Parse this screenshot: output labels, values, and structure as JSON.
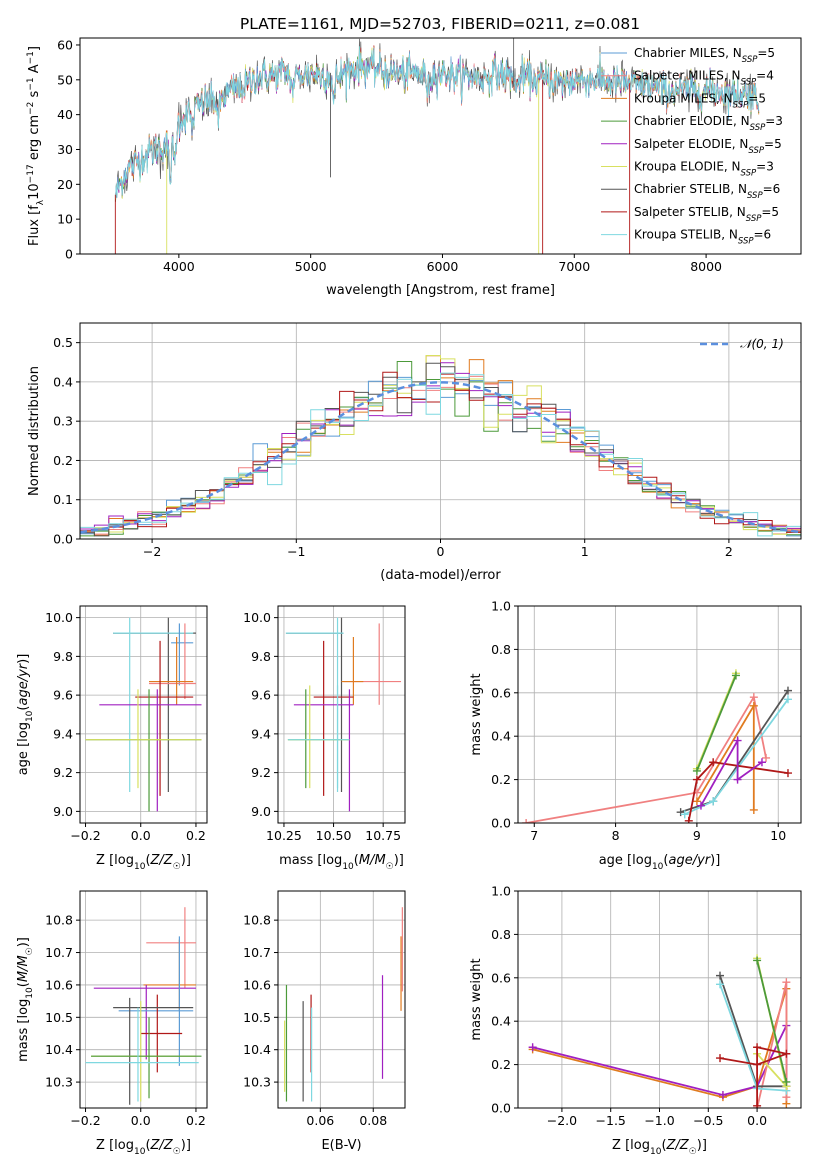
{
  "title": "PLATE=1161, MJD=52703, FIBERID=0211, z=0.081",
  "colors": {
    "chabrier_miles": "#5b9bd5",
    "salpeter_miles": "#f08080",
    "kroupa_miles": "#e07b20",
    "chabrier_elodie": "#4c9a3a",
    "salpeter_elodie": "#a020c0",
    "kroupa_elodie": "#d8e060",
    "chabrier_stelib": "#555555",
    "salpeter_stelib": "#b01818",
    "kroupa_stelib": "#7fd8e0",
    "normal": "#5b8fde",
    "pink": "#e58ac0"
  },
  "chart_data": [
    {
      "panel": "spectrum",
      "type": "line",
      "xlabel": "wavelength [Angstrom, rest frame]",
      "ylabel": "Flux [f_λ 10^-17 erg cm^-2 s^-1 A^-1]",
      "xlim": [
        3250,
        8720
      ],
      "ylim": [
        0,
        62
      ],
      "xticks": [
        "4000",
        "5000",
        "6000",
        "7000",
        "8000"
      ],
      "yticks": [
        "0",
        "10",
        "20",
        "30",
        "40",
        "50",
        "60"
      ],
      "legend": [
        {
          "label": "Chabrier MILES, N",
          "sub": "SSP",
          "value": "=5",
          "color_key": "chabrier_miles"
        },
        {
          "label": "Salpeter MILES, N",
          "sub": "SSP",
          "value": "=4",
          "color_key": "salpeter_miles"
        },
        {
          "label": "Kroupa MILES, N",
          "sub": "SSP",
          "value": "=5",
          "color_key": "kroupa_miles"
        },
        {
          "label": "Chabrier ELODIE, N",
          "sub": "SSP",
          "value": "=3",
          "color_key": "chabrier_elodie"
        },
        {
          "label": "Salpeter ELODIE, N",
          "sub": "SSP",
          "value": "=5",
          "color_key": "salpeter_elodie"
        },
        {
          "label": "Kroupa ELODIE, N",
          "sub": "SSP",
          "value": "=3",
          "color_key": "kroupa_elodie"
        },
        {
          "label": "Chabrier STELIB, N",
          "sub": "SSP",
          "value": "=6",
          "color_key": "chabrier_stelib"
        },
        {
          "label": "Salpeter STELIB, N",
          "sub": "SSP",
          "value": "=5",
          "color_key": "salpeter_stelib"
        },
        {
          "label": "Kroupa STELIB, N",
          "sub": "SSP",
          "value": "=6",
          "color_key": "kroupa_stelib"
        }
      ],
      "continuum": [
        [
          3520,
          17
        ],
        [
          3600,
          24
        ],
        [
          3700,
          27
        ],
        [
          3800,
          30
        ],
        [
          3900,
          31
        ],
        [
          3950,
          32
        ],
        [
          4000,
          38
        ],
        [
          4100,
          41
        ],
        [
          4200,
          44
        ],
        [
          4300,
          44
        ],
        [
          4400,
          47
        ],
        [
          4500,
          48
        ],
        [
          4600,
          51
        ],
        [
          4700,
          51
        ],
        [
          4800,
          52
        ],
        [
          4900,
          51
        ],
        [
          5000,
          52
        ],
        [
          5100,
          51
        ],
        [
          5200,
          51
        ],
        [
          5300,
          53
        ],
        [
          5400,
          54
        ],
        [
          5500,
          53
        ],
        [
          5600,
          52
        ],
        [
          5700,
          52
        ],
        [
          5800,
          52
        ],
        [
          5900,
          51
        ],
        [
          6000,
          52
        ],
        [
          6100,
          51
        ],
        [
          6200,
          51
        ],
        [
          6300,
          50
        ],
        [
          6400,
          52
        ],
        [
          6500,
          51
        ],
        [
          6600,
          51
        ],
        [
          6700,
          50
        ],
        [
          6800,
          50
        ],
        [
          6900,
          49
        ],
        [
          7000,
          50
        ],
        [
          7100,
          50
        ],
        [
          7200,
          50
        ],
        [
          7300,
          49
        ],
        [
          7400,
          49
        ],
        [
          7500,
          48
        ],
        [
          7600,
          48
        ],
        [
          7700,
          47
        ],
        [
          7800,
          47
        ],
        [
          7900,
          47
        ],
        [
          8000,
          47
        ],
        [
          8100,
          47
        ],
        [
          8200,
          46
        ],
        [
          8300,
          46
        ],
        [
          8400,
          45
        ]
      ],
      "features": [
        {
          "wl": 3933,
          "depth": 10
        },
        {
          "wl": 3968,
          "depth": 8
        },
        {
          "wl": 4102,
          "depth": 5
        },
        {
          "wl": 4300,
          "depth": 6
        },
        {
          "wl": 4861,
          "depth": 5
        },
        {
          "wl": 5175,
          "depth": 7
        },
        {
          "wl": 5890,
          "depth": 5
        },
        {
          "wl": 6563,
          "depth": 5
        },
        {
          "wl": 8500,
          "depth": 4
        }
      ]
    },
    {
      "panel": "residual_histogram",
      "type": "line",
      "xlabel": "(data-model)/error",
      "ylabel": "Normed distribution",
      "xlim": [
        -2.5,
        2.5
      ],
      "ylim": [
        0,
        0.55
      ],
      "xticks": [
        "-2",
        "-1",
        "0",
        "1",
        "2"
      ],
      "yticks": [
        "0.0",
        "0.1",
        "0.2",
        "0.3",
        "0.4",
        "0.5"
      ],
      "series_name": "𝒩(0, 1)",
      "bin_width": 0.1,
      "bin_start": -2.5
    },
    {
      "panel": "age_vs_Z",
      "type": "scatter",
      "xlabel": "Z [log10(Z/Z☉)]",
      "ylabel": "age [log10(age/yr)]",
      "xlim": [
        -0.22,
        0.24
      ],
      "ylim": [
        8.94,
        10.06
      ],
      "xticks": [
        "-0.2",
        "0.0",
        "0.2"
      ],
      "yticks": [
        "9.0",
        "9.2",
        "9.4",
        "9.6",
        "9.8",
        "10.0"
      ],
      "points": [
        {
          "x": 0.1,
          "y": 9.92,
          "xl": -0.1,
          "xh": 0.2,
          "yl": 9.1,
          "yh": 10.0,
          "c": "chabrier_stelib"
        },
        {
          "x": -0.04,
          "y": 9.92,
          "xl": -0.1,
          "xh": 0.19,
          "yl": 9.1,
          "yh": 10.0,
          "c": "kroupa_stelib"
        },
        {
          "x": 0.14,
          "y": 9.87,
          "xl": 0.11,
          "xh": 0.19,
          "yl": 9.65,
          "yh": 9.97,
          "c": "chabrier_miles"
        },
        {
          "x": 0.16,
          "y": 9.66,
          "xl": 0.03,
          "xh": 0.2,
          "yl": 9.58,
          "yh": 9.97,
          "c": "salpeter_miles"
        },
        {
          "x": 0.13,
          "y": 9.67,
          "xl": 0.03,
          "xh": 0.19,
          "yl": 9.55,
          "yh": 9.9,
          "c": "kroupa_miles"
        },
        {
          "x": 0.07,
          "y": 9.59,
          "xl": -0.02,
          "xh": 0.19,
          "yl": 9.08,
          "yh": 9.88,
          "c": "salpeter_stelib"
        },
        {
          "x": 0.06,
          "y": 9.55,
          "xl": -0.15,
          "xh": 0.22,
          "yl": 9.0,
          "yh": 9.63,
          "c": "salpeter_elodie"
        },
        {
          "x": 0.03,
          "y": 9.37,
          "xl": -0.2,
          "xh": 0.22,
          "yl": 9.0,
          "yh": 9.63,
          "c": "chabrier_elodie"
        },
        {
          "x": -0.01,
          "y": 9.37,
          "xl": -0.2,
          "xh": 0.22,
          "yl": 9.12,
          "yh": 9.63,
          "c": "kroupa_elodie"
        }
      ]
    },
    {
      "panel": "age_vs_mass",
      "type": "scatter",
      "xlabel": "mass [log10(M/M☉)]",
      "ylabel": "",
      "xlim": [
        10.22,
        10.86
      ],
      "ylim": [
        8.94,
        10.06
      ],
      "xticks": [
        "10.25",
        "10.50",
        "10.75"
      ],
      "yticks": [
        "9.0",
        "9.2",
        "9.4",
        "9.6",
        "9.8",
        "10.0"
      ],
      "points": [
        {
          "x": 10.54,
          "y": 9.92,
          "xl": 10.26,
          "xh": 10.55,
          "yl": 9.1,
          "yh": 10.0,
          "c": "chabrier_stelib"
        },
        {
          "x": 10.52,
          "y": 9.92,
          "xl": 10.26,
          "xh": 10.55,
          "yl": 9.1,
          "yh": 10.0,
          "c": "kroupa_stelib"
        },
        {
          "x": 10.73,
          "y": 9.67,
          "xl": 10.55,
          "xh": 10.84,
          "yl": 9.55,
          "yh": 9.97,
          "c": "salpeter_miles"
        },
        {
          "x": 10.6,
          "y": 9.67,
          "xl": 10.54,
          "xh": 10.65,
          "yl": 9.55,
          "yh": 9.9,
          "c": "kroupa_miles"
        },
        {
          "x": 10.45,
          "y": 9.59,
          "xl": 10.4,
          "xh": 10.6,
          "yl": 9.08,
          "yh": 9.88,
          "c": "salpeter_stelib"
        },
        {
          "x": 10.58,
          "y": 9.55,
          "xl": 10.3,
          "xh": 10.6,
          "yl": 9.0,
          "yh": 9.63,
          "c": "salpeter_elodie"
        },
        {
          "x": 10.36,
          "y": 9.37,
          "xl": 10.27,
          "xh": 10.58,
          "yl": 9.12,
          "yh": 9.63,
          "c": "chabrier_elodie"
        },
        {
          "x": 10.38,
          "y": 9.37,
          "xl": 10.27,
          "xh": 10.58,
          "yl": 9.12,
          "yh": 9.65,
          "c": "kroupa_elodie"
        },
        {
          "x": 10.52,
          "y": 9.37,
          "xl": 10.27,
          "xh": 10.58,
          "yl": 9.12,
          "yh": 9.65,
          "c": "kroupa_stelib"
        }
      ]
    },
    {
      "panel": "mass_weight_vs_age",
      "type": "line",
      "xlabel": "age [log10(age/yr)]",
      "ylabel": "mass weight",
      "xlim": [
        6.8,
        10.28
      ],
      "ylim": [
        0,
        1
      ],
      "xticks": [
        "7",
        "8",
        "9",
        "10"
      ],
      "yticks": [
        "0.0",
        "0.2",
        "0.4",
        "0.6",
        "0.8",
        "1.0"
      ],
      "series": [
        {
          "c": "kroupa_elodie",
          "pts": [
            [
              9.0,
              0.25
            ],
            [
              9.48,
              0.69
            ]
          ]
        },
        {
          "c": "chabrier_elodie",
          "pts": [
            [
              9.0,
              0.24
            ],
            [
              9.48,
              0.68
            ]
          ]
        },
        {
          "c": "salpeter_miles",
          "pts": [
            [
              6.9,
              0.0
            ],
            [
              9.0,
              0.14
            ],
            [
              9.7,
              0.58
            ],
            [
              9.85,
              0.3
            ]
          ]
        },
        {
          "c": "kroupa_miles",
          "pts": [
            [
              9.0,
              0.1
            ],
            [
              9.7,
              0.54
            ],
            [
              9.7,
              0.06
            ]
          ]
        },
        {
          "c": "chabrier_stelib",
          "pts": [
            [
              8.8,
              0.05
            ],
            [
              9.2,
              0.1
            ],
            [
              10.12,
              0.61
            ]
          ]
        },
        {
          "c": "kroupa_stelib",
          "pts": [
            [
              8.85,
              0.04
            ],
            [
              9.2,
              0.1
            ],
            [
              10.12,
              0.57
            ]
          ]
        },
        {
          "c": "salpeter_stelib",
          "pts": [
            [
              8.9,
              0.01
            ],
            [
              9.0,
              0.2
            ],
            [
              9.2,
              0.28
            ],
            [
              10.12,
              0.23
            ]
          ]
        },
        {
          "c": "salpeter_elodie",
          "pts": [
            [
              9.05,
              0.08
            ],
            [
              9.5,
              0.38
            ],
            [
              9.5,
              0.2
            ],
            [
              9.8,
              0.28
            ]
          ]
        }
      ]
    },
    {
      "panel": "mass_vs_Z",
      "type": "scatter",
      "xlabel": "Z [log10(Z/Z☉)]",
      "ylabel": "mass [log10(M/M☉)]",
      "xlim": [
        -0.22,
        0.24
      ],
      "ylim": [
        10.22,
        10.89
      ],
      "xticks": [
        "-0.2",
        "0.0",
        "0.2"
      ],
      "yticks": [
        "10.3",
        "10.4",
        "10.5",
        "10.6",
        "10.7",
        "10.8"
      ],
      "points": [
        {
          "x": 0.16,
          "y": 10.73,
          "xl": 0.02,
          "xh": 0.2,
          "yl": 10.59,
          "yh": 10.84,
          "c": "salpeter_miles"
        },
        {
          "x": 0.14,
          "y": 10.6,
          "xl": 0.01,
          "xh": 0.2,
          "yl": 10.52,
          "yh": 10.74,
          "c": "kroupa_miles"
        },
        {
          "x": 0.02,
          "y": 10.59,
          "xl": -0.17,
          "xh": 0.2,
          "yl": 10.37,
          "yh": 10.6,
          "c": "salpeter_elodie"
        },
        {
          "x": 0.14,
          "y": 10.52,
          "xl": -0.08,
          "xh": 0.19,
          "yl": 10.35,
          "yh": 10.75,
          "c": "chabrier_miles"
        },
        {
          "x": 0.06,
          "y": 10.45,
          "xl": 0.0,
          "xh": 0.15,
          "yl": 10.33,
          "yh": 10.57,
          "c": "salpeter_stelib"
        },
        {
          "x": -0.04,
          "y": 10.53,
          "xl": -0.1,
          "xh": 0.19,
          "yl": 10.23,
          "yh": 10.56,
          "c": "chabrier_stelib"
        },
        {
          "x": 0.0,
          "y": 10.38,
          "xl": -0.18,
          "xh": 0.2,
          "yl": 10.24,
          "yh": 10.55,
          "c": "kroupa_elodie"
        },
        {
          "x": 0.03,
          "y": 10.38,
          "xl": -0.18,
          "xh": 0.22,
          "yl": 10.25,
          "yh": 10.5,
          "c": "chabrier_elodie"
        },
        {
          "x": -0.01,
          "y": 10.36,
          "xl": -0.2,
          "xh": 0.21,
          "yl": 10.24,
          "yh": 10.53,
          "c": "kroupa_stelib"
        }
      ]
    },
    {
      "panel": "mass_vs_EBV",
      "type": "scatter",
      "xlabel": "E(B-V)",
      "ylabel": "",
      "xlim": [
        0.044,
        0.092
      ],
      "ylim": [
        10.22,
        10.89
      ],
      "xticks": [
        "0.06",
        "0.08"
      ],
      "yticks": [
        "10.3",
        "10.4",
        "10.5",
        "10.6",
        "10.7",
        "10.8"
      ],
      "points": [
        {
          "x": 0.0465,
          "yl": 10.27,
          "yh": 10.49,
          "c": "kroupa_elodie"
        },
        {
          "x": 0.0472,
          "yl": 10.24,
          "yh": 10.6,
          "c": "chabrier_elodie"
        },
        {
          "x": 0.0535,
          "yl": 10.24,
          "yh": 10.55,
          "c": "chabrier_stelib"
        },
        {
          "x": 0.0565,
          "yl": 10.33,
          "yh": 10.57,
          "c": "salpeter_stelib"
        },
        {
          "x": 0.0567,
          "yl": 10.24,
          "yh": 10.53,
          "c": "kroupa_stelib"
        },
        {
          "x": 0.0835,
          "yl": 10.31,
          "yh": 10.63,
          "c": "salpeter_elodie"
        },
        {
          "x": 0.0905,
          "yl": 10.52,
          "yh": 10.75,
          "c": "kroupa_miles"
        },
        {
          "x": 0.091,
          "yl": 10.58,
          "yh": 10.84,
          "c": "salpeter_miles"
        }
      ]
    },
    {
      "panel": "mass_weight_vs_Z",
      "type": "line",
      "xlabel": "Z [log10(Z/Z☉)]",
      "ylabel": "mass weight",
      "xlim": [
        -2.45,
        0.45
      ],
      "ylim": [
        0,
        1
      ],
      "xticks": [
        "-2.0",
        "-1.5",
        "-1.0",
        "-0.5",
        "0.0"
      ],
      "yticks": [
        "0.0",
        "0.2",
        "0.4",
        "0.6",
        "0.8",
        "1.0"
      ],
      "series": [
        {
          "c": "kroupa_miles",
          "pts": [
            [
              -2.3,
              0.27
            ],
            [
              -0.35,
              0.05
            ],
            [
              -0.0,
              0.1
            ],
            [
              0.3,
              0.55
            ],
            [
              0.3,
              0.02
            ]
          ]
        },
        {
          "c": "salpeter_elodie",
          "pts": [
            [
              -2.3,
              0.28
            ],
            [
              -0.35,
              0.06
            ],
            [
              -0.0,
              0.1
            ],
            [
              0.3,
              0.38
            ],
            [
              0.3,
              0.1
            ]
          ]
        },
        {
          "c": "salpeter_miles",
          "pts": [
            [
              0.0,
              0.0
            ],
            [
              0.3,
              0.58
            ],
            [
              0.3,
              0.05
            ]
          ]
        },
        {
          "c": "chabrier_stelib",
          "pts": [
            [
              -0.38,
              0.61
            ],
            [
              0.0,
              0.1
            ],
            [
              0.3,
              0.1
            ]
          ]
        },
        {
          "c": "kroupa_stelib",
          "pts": [
            [
              -0.38,
              0.57
            ],
            [
              0.0,
              0.09
            ],
            [
              0.3,
              0.08
            ]
          ]
        },
        {
          "c": "kroupa_elodie",
          "pts": [
            [
              0.0,
              0.69
            ],
            [
              0.3,
              0.1
            ],
            [
              0.0,
              0.25
            ]
          ]
        },
        {
          "c": "chabrier_elodie",
          "pts": [
            [
              0.0,
              0.68
            ],
            [
              0.3,
              0.12
            ]
          ]
        },
        {
          "c": "salpeter_stelib",
          "pts": [
            [
              -0.38,
              0.23
            ],
            [
              0.0,
              0.2
            ],
            [
              0.3,
              0.25
            ],
            [
              0.0,
              0.28
            ],
            [
              0.0,
              0.01
            ]
          ]
        }
      ]
    }
  ]
}
